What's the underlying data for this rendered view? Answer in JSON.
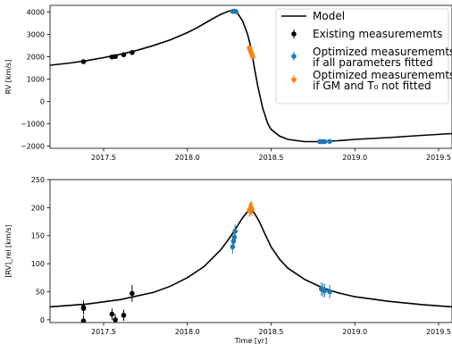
{
  "colors": {
    "model": "#000000",
    "existing": "#000000",
    "optimized_all": "#1f77b4",
    "optimized_fixed": "#ff7f0e"
  },
  "chart_data": [
    {
      "type": "line",
      "ylabel": "RV [km/s]",
      "xlim": [
        2017.18,
        2019.58
      ],
      "ylim": [
        -2100,
        4300
      ],
      "xticks": [
        2017.5,
        2018.0,
        2018.5,
        2019.0,
        2019.5
      ],
      "xticklabels": [
        "2017.5",
        "2018.0",
        "2018.5",
        "2019.0",
        "2019.5"
      ],
      "yticks": [
        -2000,
        -1000,
        0,
        1000,
        2000,
        3000,
        4000
      ],
      "yticklabels": [
        "−2000",
        "−1000",
        "0",
        "1000",
        "2000",
        "3000",
        "4000"
      ],
      "grid": false,
      "legend_position": "top-right",
      "legend": [
        {
          "key": "model",
          "label_lines": [
            "Model"
          ]
        },
        {
          "key": "existing",
          "label_lines": [
            "Existing measurememts"
          ]
        },
        {
          "key": "optimized_all",
          "label_lines": [
            "Optimized measurememts",
            " if all parameters fitted"
          ]
        },
        {
          "key": "optimized_fixed",
          "label_lines": [
            "Optimized measurememts",
            " if GM and T₀ not fitted"
          ]
        }
      ],
      "model_curve": {
        "x": [
          2017.18,
          2017.3,
          2017.4,
          2017.5,
          2017.6,
          2017.7,
          2017.8,
          2017.9,
          2018.0,
          2018.05,
          2018.1,
          2018.15,
          2018.2,
          2018.25,
          2018.28,
          2018.3,
          2018.33,
          2018.36,
          2018.38,
          2018.4,
          2018.42,
          2018.45,
          2018.48,
          2018.5,
          2018.55,
          2018.6,
          2018.7,
          2018.8,
          2018.9,
          2019.0,
          2019.2,
          2019.4,
          2019.58
        ],
        "y": [
          1620,
          1720,
          1830,
          1960,
          2110,
          2290,
          2510,
          2760,
          3080,
          3270,
          3480,
          3700,
          3900,
          4050,
          4060,
          3950,
          3600,
          3000,
          2400,
          1500,
          700,
          -300,
          -1000,
          -1250,
          -1550,
          -1700,
          -1800,
          -1800,
          -1760,
          -1700,
          -1620,
          -1520,
          -1440
        ]
      },
      "series": [
        {
          "key": "existing",
          "x": [
            2017.38,
            2017.55,
            2017.57,
            2017.62,
            2017.67
          ],
          "y": [
            1780,
            1990,
            2010,
            2090,
            2190
          ],
          "yerr": [
            60,
            60,
            60,
            60,
            60
          ]
        },
        {
          "key": "optimized_all",
          "x": [
            2018.27,
            2018.28,
            2018.29,
            2018.79,
            2018.8,
            2018.81,
            2018.82,
            2018.85
          ],
          "y": [
            4030,
            4040,
            4020,
            -1800,
            -1800,
            -1800,
            -1800,
            -1790
          ],
          "yerr": [
            50,
            50,
            50,
            50,
            50,
            50,
            50,
            50
          ]
        },
        {
          "key": "optimized_fixed",
          "x": [
            2018.37,
            2018.375,
            2018.38,
            2018.385,
            2018.39
          ],
          "y": [
            2400,
            2300,
            2200,
            2100,
            2000
          ],
          "yerr": [
            80,
            80,
            80,
            80,
            80
          ]
        }
      ]
    },
    {
      "type": "line",
      "ylabel": "[RV]_rel [km/s]",
      "xlabel": "Time [yr]",
      "xlim": [
        2017.18,
        2019.58
      ],
      "ylim": [
        -5,
        250
      ],
      "xticks": [
        2017.5,
        2018.0,
        2018.5,
        2019.0,
        2019.5
      ],
      "xticklabels": [
        "2017.5",
        "2018.0",
        "2018.5",
        "2019.0",
        "2019.5"
      ],
      "yticks": [
        0,
        50,
        100,
        150,
        200,
        250
      ],
      "yticklabels": [
        "0",
        "50",
        "100",
        "150",
        "200",
        "250"
      ],
      "grid": false,
      "model_curve": {
        "x": [
          2017.18,
          2017.4,
          2017.6,
          2017.8,
          2017.9,
          2018.0,
          2018.1,
          2018.15,
          2018.2,
          2018.25,
          2018.3,
          2018.33,
          2018.36,
          2018.38,
          2018.4,
          2018.43,
          2018.46,
          2018.5,
          2018.55,
          2018.6,
          2018.7,
          2018.8,
          2018.9,
          2019.0,
          2019.2,
          2019.4,
          2019.58
        ],
        "y": [
          23,
          28,
          36,
          49,
          60,
          75,
          95,
          110,
          125,
          145,
          168,
          182,
          193,
          196,
          190,
          175,
          155,
          130,
          108,
          92,
          72,
          58,
          48,
          41,
          33,
          27,
          23
        ]
      },
      "series": [
        {
          "key": "existing",
          "x": [
            2017.38,
            2017.38,
            2017.38,
            2017.55,
            2017.57,
            2017.62,
            2017.67
          ],
          "y": [
            22,
            20,
            -2,
            10,
            0,
            8,
            47
          ],
          "yerr": [
            12,
            10,
            10,
            10,
            10,
            10,
            15
          ]
        },
        {
          "key": "optimized_all",
          "x": [
            2018.27,
            2018.275,
            2018.28,
            2018.285,
            2018.8,
            2018.81,
            2018.82,
            2018.85
          ],
          "y": [
            130,
            140,
            147,
            158,
            55,
            53,
            52,
            50
          ],
          "yerr": [
            12,
            12,
            12,
            12,
            12,
            12,
            12,
            12
          ]
        },
        {
          "key": "optimized_fixed",
          "x": [
            2018.37,
            2018.375,
            2018.38,
            2018.385
          ],
          "y": [
            195,
            198,
            200,
            197
          ],
          "yerr": [
            12,
            12,
            12,
            12
          ]
        }
      ]
    }
  ]
}
